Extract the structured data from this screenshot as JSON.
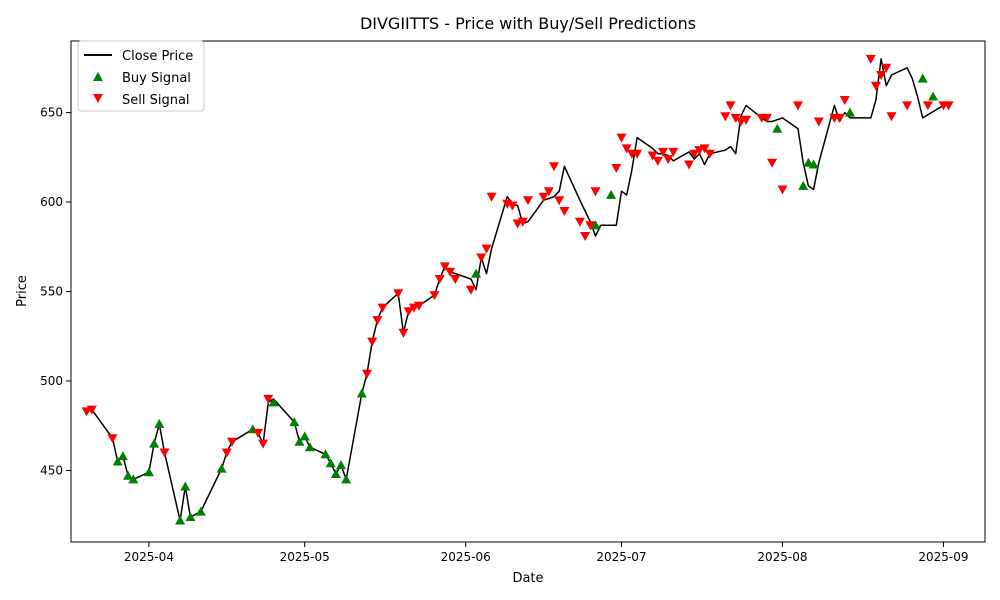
{
  "chart_data": {
    "type": "line",
    "title": "DIVGIITTS - Price with Buy/Sell Predictions",
    "xlabel": "Date",
    "ylabel": "Price",
    "xlim": [
      "2025-03-17",
      "2025-09-09"
    ],
    "ylim": [
      410,
      690
    ],
    "x_ticks": [
      "2025-04",
      "2025-05",
      "2025-06",
      "2025-07",
      "2025-08",
      "2025-09"
    ],
    "x_tick_dates": [
      "2025-04-01",
      "2025-05-01",
      "2025-06-01",
      "2025-07-01",
      "2025-08-01",
      "2025-09-01"
    ],
    "y_ticks": [
      450,
      500,
      550,
      600,
      650
    ],
    "legend": {
      "position": "top-left",
      "entries": [
        "Close Price",
        "Buy Signal",
        "Sell Signal"
      ]
    },
    "colors": {
      "line": "#000000",
      "buy": "#008000",
      "sell": "#ff0000"
    },
    "series": [
      {
        "name": "Close Price",
        "x": [
          "2025-03-20",
          "2025-03-21",
          "2025-03-25",
          "2025-03-26",
          "2025-03-27",
          "2025-03-28",
          "2025-03-29",
          "2025-04-01",
          "2025-04-02",
          "2025-04-03",
          "2025-04-04",
          "2025-04-07",
          "2025-04-08",
          "2025-04-09",
          "2025-04-11",
          "2025-04-15",
          "2025-04-16",
          "2025-04-17",
          "2025-04-21",
          "2025-04-22",
          "2025-04-23",
          "2025-04-24",
          "2025-04-25",
          "2025-04-29",
          "2025-04-30",
          "2025-05-01",
          "2025-05-02",
          "2025-05-05",
          "2025-05-06",
          "2025-05-07",
          "2025-05-08",
          "2025-05-09",
          "2025-05-12",
          "2025-05-13",
          "2025-05-14",
          "2025-05-15",
          "2025-05-16",
          "2025-05-19",
          "2025-05-20",
          "2025-05-21",
          "2025-05-22",
          "2025-05-23",
          "2025-05-26",
          "2025-05-27",
          "2025-05-28",
          "2025-05-29",
          "2025-06-02",
          "2025-06-03",
          "2025-06-04",
          "2025-06-05",
          "2025-06-06",
          "2025-06-09",
          "2025-06-10",
          "2025-06-11",
          "2025-06-12",
          "2025-06-13",
          "2025-06-16",
          "2025-06-17",
          "2025-06-18",
          "2025-06-19",
          "2025-06-20",
          "2025-06-23",
          "2025-06-24",
          "2025-06-25",
          "2025-06-26",
          "2025-06-27",
          "2025-06-30",
          "2025-07-01",
          "2025-07-02",
          "2025-07-03",
          "2025-07-04",
          "2025-07-07",
          "2025-07-08",
          "2025-07-09",
          "2025-07-10",
          "2025-07-11",
          "2025-07-14",
          "2025-07-15",
          "2025-07-16",
          "2025-07-17",
          "2025-07-18",
          "2025-07-21",
          "2025-07-22",
          "2025-07-23",
          "2025-07-24",
          "2025-07-25",
          "2025-07-28",
          "2025-07-29",
          "2025-07-30",
          "2025-07-31",
          "2025-08-01",
          "2025-08-04",
          "2025-08-05",
          "2025-08-06",
          "2025-08-07",
          "2025-08-08",
          "2025-08-11",
          "2025-08-12",
          "2025-08-13",
          "2025-08-14",
          "2025-08-18",
          "2025-08-19",
          "2025-08-20",
          "2025-08-21",
          "2025-08-22",
          "2025-08-25",
          "2025-08-26",
          "2025-08-27",
          "2025-08-28",
          "2025-09-01",
          "2025-09-02"
        ],
        "values": [
          483,
          484,
          468,
          455,
          458,
          447,
          445,
          449,
          465,
          476,
          460,
          422,
          441,
          424,
          427,
          451,
          460,
          466,
          473,
          471,
          465,
          488,
          490,
          477,
          466,
          469,
          463,
          459,
          454,
          448,
          453,
          445,
          493,
          504,
          522,
          534,
          541,
          549,
          527,
          539,
          541,
          542,
          548,
          557,
          564,
          561,
          557,
          551,
          569,
          560,
          574,
          603,
          599,
          598,
          588,
          589,
          601,
          602,
          603,
          606,
          620,
          601,
          595,
          589,
          581,
          587,
          587,
          606,
          604,
          618,
          636,
          630,
          627,
          627,
          626,
          623,
          628,
          624,
          627,
          621,
          627,
          629,
          631,
          627,
          648,
          654,
          647,
          645,
          645,
          646,
          647,
          641,
          622,
          609,
          607,
          622,
          654,
          645,
          650,
          647,
          647,
          657,
          680,
          665,
          671,
          675,
          669,
          659,
          647,
          654,
          654
        ]
      },
      {
        "name": "Buy Signal",
        "x": [
          "2025-03-26",
          "2025-03-27",
          "2025-03-28",
          "2025-03-29",
          "2025-04-01",
          "2025-04-02",
          "2025-04-03",
          "2025-04-07",
          "2025-04-08",
          "2025-04-09",
          "2025-04-11",
          "2025-04-15",
          "2025-04-21",
          "2025-04-25",
          "2025-04-29",
          "2025-04-30",
          "2025-05-01",
          "2025-05-02",
          "2025-05-05",
          "2025-05-06",
          "2025-05-07",
          "2025-05-08",
          "2025-05-09",
          "2025-05-12",
          "2025-06-03",
          "2025-06-26",
          "2025-06-29",
          "2025-07-31",
          "2025-08-05",
          "2025-08-06",
          "2025-08-07",
          "2025-08-14",
          "2025-08-28",
          "2025-08-30"
        ],
        "values": [
          455,
          458,
          447,
          445,
          449,
          465,
          476,
          422,
          441,
          424,
          427,
          451,
          473,
          488,
          477,
          466,
          469,
          463,
          459,
          454,
          448,
          453,
          445,
          493,
          560,
          587,
          604,
          641,
          609,
          622,
          621,
          650,
          669,
          659
        ]
      },
      {
        "name": "Sell Signal",
        "x": [
          "2025-03-20",
          "2025-03-21",
          "2025-03-25",
          "2025-04-04",
          "2025-04-16",
          "2025-04-17",
          "2025-04-22",
          "2025-04-23",
          "2025-04-24",
          "2025-05-13",
          "2025-05-14",
          "2025-05-15",
          "2025-05-16",
          "2025-05-19",
          "2025-05-20",
          "2025-05-21",
          "2025-05-22",
          "2025-05-23",
          "2025-05-26",
          "2025-05-27",
          "2025-05-28",
          "2025-05-29",
          "2025-05-30",
          "2025-06-02",
          "2025-06-04",
          "2025-06-05",
          "2025-06-06",
          "2025-06-09",
          "2025-06-10",
          "2025-06-11",
          "2025-06-12",
          "2025-06-13",
          "2025-06-16",
          "2025-06-17",
          "2025-06-18",
          "2025-06-19",
          "2025-06-20",
          "2025-06-23",
          "2025-06-24",
          "2025-06-25",
          "2025-06-26",
          "2025-06-30",
          "2025-07-01",
          "2025-07-02",
          "2025-07-03",
          "2025-07-04",
          "2025-07-07",
          "2025-07-08",
          "2025-07-09",
          "2025-07-10",
          "2025-07-11",
          "2025-07-14",
          "2025-07-15",
          "2025-07-16",
          "2025-07-17",
          "2025-07-18",
          "2025-07-21",
          "2025-07-22",
          "2025-07-23",
          "2025-07-24",
          "2025-07-25",
          "2025-07-28",
          "2025-07-29",
          "2025-07-30",
          "2025-08-01",
          "2025-08-04",
          "2025-08-08",
          "2025-08-11",
          "2025-08-12",
          "2025-08-13",
          "2025-08-18",
          "2025-08-19",
          "2025-08-20",
          "2025-08-21",
          "2025-08-22",
          "2025-08-25",
          "2025-08-29",
          "2025-09-01",
          "2025-09-02"
        ],
        "values": [
          483,
          484,
          468,
          460,
          460,
          466,
          471,
          465,
          490,
          504,
          522,
          534,
          541,
          549,
          527,
          539,
          541,
          542,
          548,
          557,
          564,
          561,
          557,
          551,
          569,
          574,
          603,
          599,
          598,
          588,
          589,
          601,
          603,
          606,
          620,
          601,
          595,
          589,
          581,
          587,
          606,
          619,
          636,
          630,
          627,
          627,
          626,
          623,
          628,
          624,
          628,
          621,
          627,
          629,
          630,
          627,
          648,
          654,
          647,
          645,
          646,
          647,
          647,
          622,
          607,
          654,
          645,
          647,
          647,
          657,
          680,
          665,
          671,
          675,
          648,
          654,
          654,
          654,
          654
        ]
      }
    ]
  }
}
